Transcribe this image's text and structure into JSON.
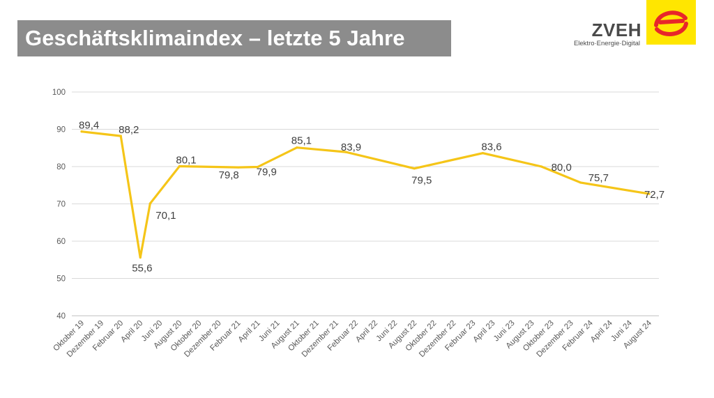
{
  "header": {
    "title": "Geschäftsklimaindex – letzte 5 Jahre"
  },
  "logo": {
    "wordmark": "ZVEH",
    "tagline": "Elektro·Energie·Digital",
    "accent_color": "#ffe600",
    "mark_color": "#e8262a"
  },
  "chart_data": {
    "type": "line",
    "categories": [
      "Oktober 19",
      "Dezember 19",
      "Februar 20",
      "April 20",
      "Juni 20",
      "August 20",
      "Oktober 20",
      "Dezember 20",
      "Februar 21",
      "April 21",
      "Juni 21",
      "August 21",
      "Oktober 21",
      "Dezember 21",
      "Februar 22",
      "April 22",
      "Juni 22",
      "August 22",
      "Oktober 22",
      "Dezember 22",
      "Februar 23",
      "April 23",
      "Juni 23",
      "August 23",
      "Oktober 23",
      "Dezember 23",
      "Februar 24",
      "April 24",
      "Juni 24",
      "August 24"
    ],
    "series": [
      {
        "name": "",
        "color": "#f5c518",
        "points": [
          {
            "x": 0,
            "y": 89.4,
            "label": "89,4"
          },
          {
            "x": 2,
            "y": 88.2,
            "label": "88,2"
          },
          {
            "x": 3,
            "y": 55.6,
            "label": "55,6"
          },
          {
            "x": 3.5,
            "y": 70.1,
            "label": "70,1"
          },
          {
            "x": 5,
            "y": 80.1,
            "label": "80,1"
          },
          {
            "x": 8,
            "y": 79.8,
            "label": "79,8"
          },
          {
            "x": 9,
            "y": 79.9,
            "label": "79,9"
          },
          {
            "x": 11,
            "y": 85.1,
            "label": "85,1"
          },
          {
            "x": 13.5,
            "y": 83.9,
            "label": "83,9"
          },
          {
            "x": 17,
            "y": 79.5,
            "label": "79,5"
          },
          {
            "x": 20.5,
            "y": 83.6,
            "label": "83,6"
          },
          {
            "x": 23.5,
            "y": 80.0,
            "label": "80,0"
          },
          {
            "x": 25.5,
            "y": 75.7,
            "label": "75,7"
          },
          {
            "x": 29,
            "y": 72.7,
            "label": "72,7"
          }
        ]
      }
    ],
    "yticks": [
      40,
      50,
      60,
      70,
      80,
      90,
      100
    ],
    "ylim": [
      40,
      100
    ],
    "title": "",
    "xlabel": "",
    "ylabel": "",
    "grid": true,
    "legend": "none"
  }
}
